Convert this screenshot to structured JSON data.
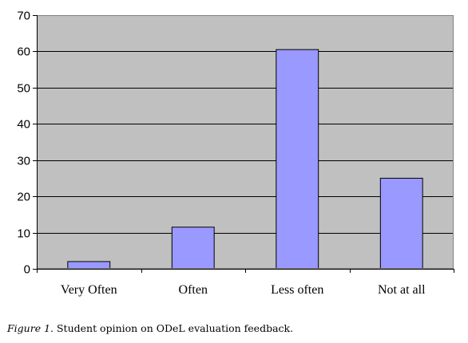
{
  "chart_data": {
    "type": "bar",
    "categories": [
      "Very Often",
      "Often",
      "Less often",
      "Not at all"
    ],
    "values": [
      2,
      11.5,
      60.5,
      25
    ],
    "ylim": [
      0,
      70
    ],
    "yticks": [
      0,
      10,
      20,
      30,
      40,
      50,
      60,
      70
    ],
    "grid": true,
    "legend": "none",
    "colors": {
      "bar_fill": "#9999ff",
      "plot_background": "#c0c0c0",
      "gridline": "#000000",
      "axis": "#000000",
      "bar_stroke": "#000000"
    }
  },
  "caption": {
    "label": "Figure 1",
    "text": ". Student opinion on ODeL evaluation feedback."
  }
}
